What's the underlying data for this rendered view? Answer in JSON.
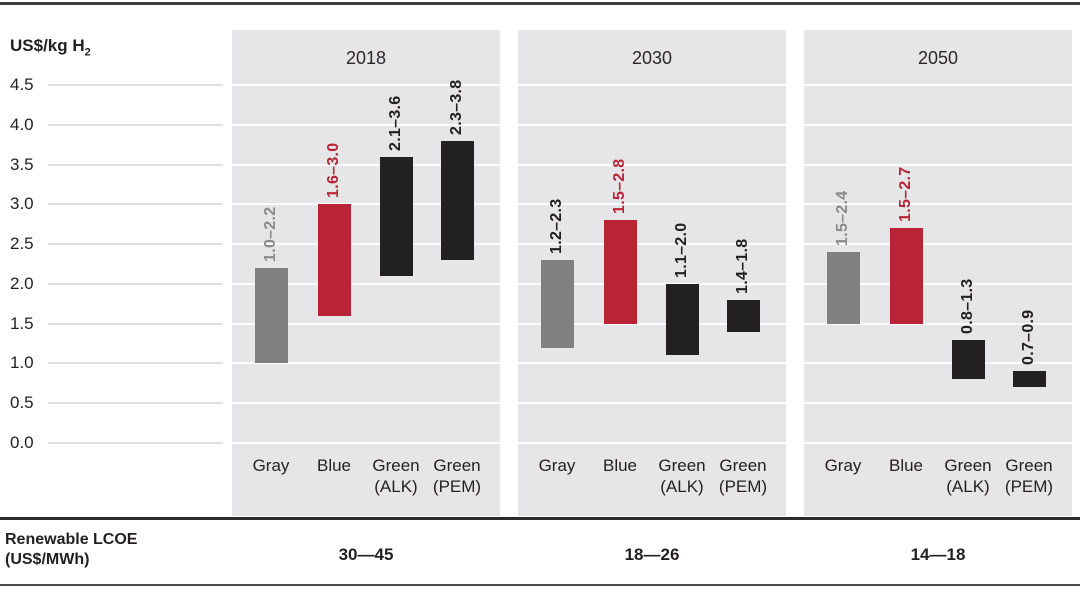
{
  "axis": {
    "title_main": "US$/kg H",
    "title_sub": "2",
    "tick_labels": [
      "4.5",
      "4.0",
      "3.5",
      "3.0",
      "2.5",
      "2.0",
      "1.5",
      "1.0",
      "0.5",
      "0.0"
    ]
  },
  "colors": {
    "bar": {
      "gray": "#808080",
      "blue": "#b82336",
      "green": "#232021"
    },
    "label": {
      "gray": "#8a8a8a",
      "red": "#b82336",
      "black": "#231f20"
    },
    "panel_bg": "#e6e6e9",
    "grid_inside": "#fcfcfd",
    "grid_outside": "#dfdfe2",
    "text": "#231f20"
  },
  "chart_data": {
    "type": "bar",
    "subtype": "floating-range-columns",
    "ylabel": "US$/kg H2",
    "ylim": [
      0,
      4.75
    ],
    "y_ticks": [
      4.5,
      4.0,
      3.5,
      3.0,
      2.5,
      2.0,
      1.5,
      1.0,
      0.5,
      0.0
    ],
    "grid": true,
    "categories": [
      {
        "lines": [
          "Gray"
        ]
      },
      {
        "lines": [
          "Blue"
        ]
      },
      {
        "lines": [
          "Green",
          "(ALK)"
        ]
      },
      {
        "lines": [
          "Green",
          "(PEM)"
        ]
      }
    ],
    "panels": [
      {
        "year": "2018",
        "lcoe": "30—45",
        "bars": [
          {
            "category": "Gray",
            "lo": 1.0,
            "hi": 2.2,
            "range_label": "1.0–2.2",
            "bar_color": "gray",
            "label_color": "gray"
          },
          {
            "category": "Blue",
            "lo": 1.6,
            "hi": 3.0,
            "range_label": "1.6–3.0",
            "bar_color": "blue",
            "label_color": "red"
          },
          {
            "category": "Green (ALK)",
            "lo": 2.1,
            "hi": 3.6,
            "range_label": "2.1–3.6",
            "bar_color": "green",
            "label_color": "black"
          },
          {
            "category": "Green (PEM)",
            "lo": 2.3,
            "hi": 3.8,
            "range_label": "2.3–3.8",
            "bar_color": "green",
            "label_color": "black"
          }
        ]
      },
      {
        "year": "2030",
        "lcoe": "18—26",
        "bars": [
          {
            "category": "Gray",
            "lo": 1.2,
            "hi": 2.3,
            "range_label": "1.2–2.3",
            "bar_color": "gray",
            "label_color": "black"
          },
          {
            "category": "Blue",
            "lo": 1.5,
            "hi": 2.8,
            "range_label": "1.5–2.8",
            "bar_color": "blue",
            "label_color": "red"
          },
          {
            "category": "Green (ALK)",
            "lo": 1.1,
            "hi": 2.0,
            "range_label": "1.1–2.0",
            "bar_color": "green",
            "label_color": "black"
          },
          {
            "category": "Green (PEM)",
            "lo": 1.4,
            "hi": 1.8,
            "range_label": "1.4–1.8",
            "bar_color": "green",
            "label_color": "black"
          }
        ]
      },
      {
        "year": "2050",
        "lcoe": "14—18",
        "bars": [
          {
            "category": "Gray",
            "lo": 1.5,
            "hi": 2.4,
            "range_label": "1.5–2.4",
            "bar_color": "gray",
            "label_color": "gray"
          },
          {
            "category": "Blue",
            "lo": 1.5,
            "hi": 2.7,
            "range_label": "1.5–2.7",
            "bar_color": "blue",
            "label_color": "red"
          },
          {
            "category": "Green (ALK)",
            "lo": 0.8,
            "hi": 1.3,
            "range_label": "0.8–1.3",
            "bar_color": "green",
            "label_color": "black"
          },
          {
            "category": "Green (PEM)",
            "lo": 0.7,
            "hi": 0.9,
            "range_label": "0.7–0.9",
            "bar_color": "green",
            "label_color": "black"
          }
        ]
      }
    ]
  },
  "footer": {
    "row_label_line1": "Renewable LCOE",
    "row_label_line2": "(US$/MWh)"
  }
}
